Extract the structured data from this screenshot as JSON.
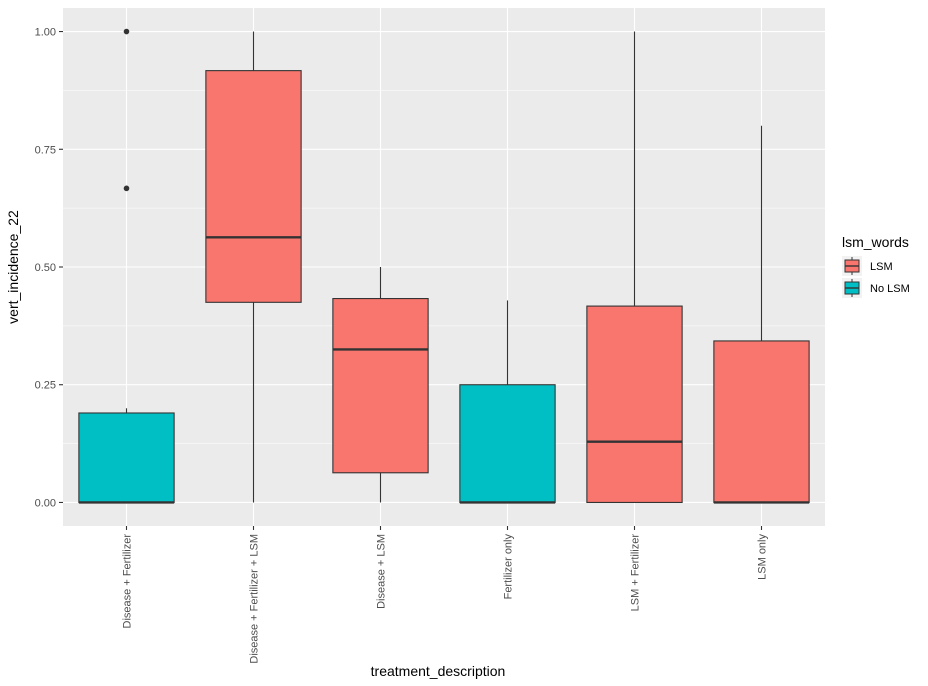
{
  "chart_data": {
    "type": "boxplot",
    "xlabel": "treatment_description",
    "ylabel": "vert_incidence_22",
    "ylim": [
      -0.05,
      1.05
    ],
    "y_ticks": [
      0.0,
      0.25,
      0.5,
      0.75,
      1.0
    ],
    "y_tick_labels": [
      "0.00",
      "0.25",
      "0.50",
      "0.75",
      "1.00"
    ],
    "grid": true,
    "legend": {
      "title": "lsm_words",
      "position": "right",
      "entries": [
        {
          "name": "LSM",
          "color": "#F8766D"
        },
        {
          "name": "No LSM",
          "color": "#00BFC4"
        }
      ]
    },
    "colors": {
      "panel_bg": "#EBEBEB",
      "grid": "#FFFFFF",
      "box_outline": "#333333"
    },
    "categories": [
      "Disease + Fertilizer",
      "Disease + Fertilizer + LSM",
      "Disease + LSM",
      "Fertilizer only",
      "LSM + Fertilizer",
      "LSM only"
    ],
    "boxes": [
      {
        "category": "Disease + Fertilizer",
        "group": "No LSM",
        "min": 0.0,
        "q1": 0.0,
        "median": 0.0,
        "q3": 0.19,
        "max": 0.2,
        "outliers": [
          0.667,
          1.0
        ]
      },
      {
        "category": "Disease + Fertilizer + LSM",
        "group": "LSM",
        "min": 0.0,
        "q1": 0.425,
        "median": 0.563,
        "q3": 0.917,
        "max": 1.0,
        "outliers": []
      },
      {
        "category": "Disease + LSM",
        "group": "LSM",
        "min": 0.0,
        "q1": 0.063,
        "median": 0.325,
        "q3": 0.433,
        "max": 0.5,
        "outliers": []
      },
      {
        "category": "Fertilizer only",
        "group": "No LSM",
        "min": 0.0,
        "q1": 0.0,
        "median": 0.0,
        "q3": 0.25,
        "max": 0.429,
        "outliers": []
      },
      {
        "category": "LSM + Fertilizer",
        "group": "LSM",
        "min": 0.0,
        "q1": 0.0,
        "median": 0.129,
        "q3": 0.417,
        "max": 1.0,
        "outliers": []
      },
      {
        "category": "LSM only",
        "group": "LSM",
        "min": 0.0,
        "q1": 0.0,
        "median": 0.0,
        "q3": 0.343,
        "max": 0.8,
        "outliers": []
      }
    ]
  }
}
